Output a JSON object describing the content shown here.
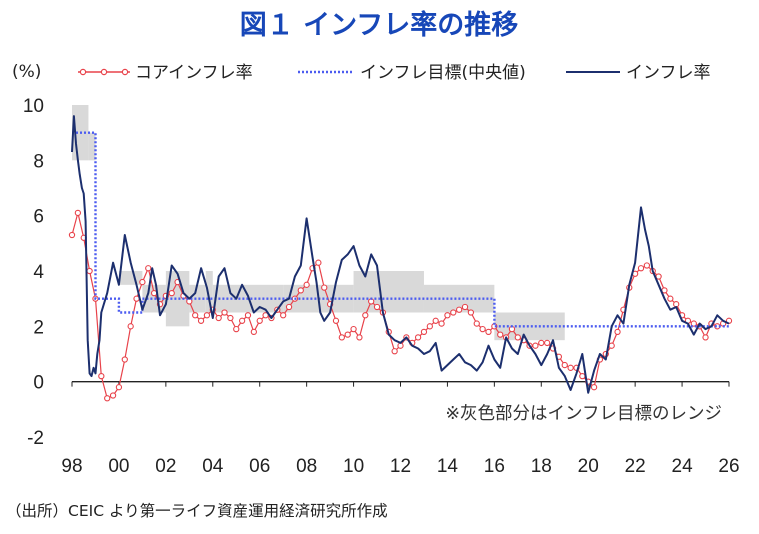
{
  "chart_data": {
    "type": "line",
    "title": "図１ インフレ率の推移",
    "ylabel": "(%)",
    "ylim": [
      -2,
      10
    ],
    "yticks": [
      "10",
      "8",
      "6",
      "4",
      "2",
      "0",
      "-2"
    ],
    "xticks": [
      "98",
      "00",
      "02",
      "04",
      "06",
      "08",
      "10",
      "12",
      "14",
      "16",
      "18",
      "20",
      "22",
      "24",
      "26"
    ],
    "xrange_years": [
      1998,
      2026
    ],
    "legend": [
      "コアインフレ率",
      "インフレ目標(中央値)",
      "インフレ率"
    ],
    "note": "※灰色部分はインフレ目標のレンジ",
    "source": "（出所）CEIC より第一ライフ資産運用経済研究所作成",
    "colors": {
      "title": "#1747b8",
      "core": "#e8424a",
      "target": "#4c5cf0",
      "headline": "#1c2f6e",
      "band": "#d9d9d9"
    },
    "target_band": [
      {
        "from": 1998.0,
        "to": 1998.7,
        "low": 8,
        "high": 10
      },
      {
        "from": 1998.7,
        "to": 1999.0,
        "low": 8,
        "high": 9
      },
      {
        "from": 2000.0,
        "to": 2001.0,
        "low": 3.5,
        "high": 4
      },
      {
        "from": 2001.0,
        "to": 2002.0,
        "low": 2.5,
        "high": 3.5
      },
      {
        "from": 2002.0,
        "to": 2003.0,
        "low": 2,
        "high": 4
      },
      {
        "from": 2003.0,
        "to": 2003.7,
        "low": 2.5,
        "high": 3.5
      },
      {
        "from": 2003.7,
        "to": 2004.0,
        "low": 2.5,
        "high": 4
      },
      {
        "from": 2004.0,
        "to": 2007.0,
        "low": 2.5,
        "high": 3.5
      },
      {
        "from": 2007.0,
        "to": 2010.0,
        "low": 2.5,
        "high": 3.5
      },
      {
        "from": 2010.0,
        "to": 2013.0,
        "low": 2.5,
        "high": 4
      },
      {
        "from": 2013.0,
        "to": 2016.0,
        "low": 2.5,
        "high": 3.5
      },
      {
        "from": 2016.0,
        "to": 2019.0,
        "low": 1.5,
        "high": 2.5
      }
    ],
    "series": [
      {
        "name": "コアインフレ率",
        "style": "line-circle",
        "x": [
          1998.0,
          1998.25,
          1998.5,
          1998.75,
          1999.0,
          1999.25,
          1999.5,
          1999.75,
          2000.0,
          2000.25,
          2000.5,
          2000.75,
          2001.0,
          2001.25,
          2001.5,
          2001.75,
          2002.0,
          2002.25,
          2002.5,
          2002.75,
          2003.0,
          2003.25,
          2003.5,
          2003.75,
          2004.0,
          2004.25,
          2004.5,
          2004.75,
          2005.0,
          2005.25,
          2005.5,
          2005.75,
          2006.0,
          2006.25,
          2006.5,
          2006.75,
          2007.0,
          2007.25,
          2007.5,
          2007.75,
          2008.0,
          2008.25,
          2008.5,
          2008.75,
          2009.0,
          2009.25,
          2009.5,
          2009.75,
          2010.0,
          2010.25,
          2010.5,
          2010.75,
          2011.0,
          2011.25,
          2011.5,
          2011.75,
          2012.0,
          2012.25,
          2012.5,
          2012.75,
          2013.0,
          2013.25,
          2013.5,
          2013.75,
          2014.0,
          2014.25,
          2014.5,
          2014.75,
          2015.0,
          2015.25,
          2015.5,
          2015.75,
          2016.0,
          2016.25,
          2016.5,
          2016.75,
          2017.0,
          2017.25,
          2017.5,
          2017.75,
          2018.0,
          2018.25,
          2018.5,
          2018.75,
          2019.0,
          2019.25,
          2019.5,
          2019.75,
          2020.0,
          2020.25,
          2020.5,
          2020.75,
          2021.0,
          2021.25,
          2021.5,
          2021.75,
          2022.0,
          2022.25,
          2022.5,
          2022.75,
          2023.0,
          2023.25,
          2023.5,
          2023.75,
          2024.0,
          2024.25,
          2024.5,
          2024.75,
          2025.0,
          2025.25,
          2025.5,
          2025.75,
          2026.0
        ],
        "values": [
          5.3,
          6.1,
          5.2,
          4.0,
          3.0,
          0.2,
          -0.6,
          -0.5,
          -0.2,
          0.8,
          2.0,
          3.0,
          3.6,
          4.1,
          3.2,
          2.8,
          3.1,
          3.2,
          3.6,
          3.1,
          2.9,
          2.4,
          2.2,
          2.4,
          2.6,
          2.3,
          2.5,
          2.3,
          1.9,
          2.2,
          2.4,
          1.8,
          2.2,
          2.4,
          2.3,
          2.6,
          2.4,
          2.7,
          3.0,
          3.3,
          3.5,
          4.1,
          4.3,
          3.4,
          2.8,
          2.2,
          1.6,
          1.7,
          1.9,
          1.6,
          2.4,
          2.9,
          2.7,
          2.5,
          1.8,
          1.1,
          1.3,
          1.6,
          1.4,
          1.6,
          1.8,
          2.0,
          2.2,
          2.1,
          2.4,
          2.5,
          2.6,
          2.7,
          2.5,
          2.1,
          1.9,
          1.8,
          2.0,
          1.7,
          1.6,
          1.9,
          1.6,
          1.5,
          1.3,
          1.3,
          1.4,
          1.4,
          1.2,
          0.9,
          0.6,
          0.5,
          0.5,
          0.2,
          0.0,
          -0.2,
          0.8,
          1.0,
          1.3,
          1.8,
          2.6,
          3.4,
          3.9,
          4.1,
          4.2,
          4.0,
          3.8,
          3.3,
          3.0,
          2.8,
          2.4,
          2.2,
          2.1,
          2.0,
          1.6,
          2.1,
          2.0,
          2.1,
          2.2
        ]
      },
      {
        "name": "インフレ目標(中央値)",
        "style": "dotted",
        "x": [
          1998.0,
          1999.0,
          1999.0,
          2000.0,
          2000.0,
          2001.0,
          2001.0,
          2016.0,
          2016.0,
          2026.0
        ],
        "values": [
          9,
          9,
          3,
          3,
          2.5,
          2.5,
          3,
          3,
          2,
          2
        ]
      },
      {
        "name": "インフレ率",
        "style": "line",
        "x": [
          1998.0,
          1998.08,
          1998.17,
          1998.25,
          1998.33,
          1998.42,
          1998.5,
          1998.58,
          1998.67,
          1998.75,
          1998.83,
          1998.92,
          1999.0,
          1999.08,
          1999.17,
          1999.25,
          1999.5,
          1999.75,
          2000.0,
          2000.25,
          2000.5,
          2000.75,
          2001.0,
          2001.25,
          2001.42,
          2001.58,
          2001.75,
          2002.0,
          2002.25,
          2002.5,
          2002.75,
          2003.0,
          2003.25,
          2003.5,
          2003.75,
          2004.0,
          2004.25,
          2004.5,
          2004.75,
          2005.0,
          2005.25,
          2005.5,
          2005.75,
          2006.0,
          2006.25,
          2006.5,
          2006.75,
          2007.0,
          2007.25,
          2007.5,
          2007.75,
          2008.0,
          2008.25,
          2008.42,
          2008.58,
          2008.75,
          2009.0,
          2009.25,
          2009.5,
          2009.75,
          2010.0,
          2010.25,
          2010.5,
          2010.75,
          2011.0,
          2011.25,
          2011.5,
          2011.75,
          2012.0,
          2012.25,
          2012.5,
          2012.75,
          2013.0,
          2013.25,
          2013.5,
          2013.75,
          2014.0,
          2014.25,
          2014.5,
          2014.75,
          2015.0,
          2015.25,
          2015.5,
          2015.75,
          2016.0,
          2016.25,
          2016.5,
          2016.75,
          2017.0,
          2017.25,
          2017.5,
          2017.75,
          2018.0,
          2018.25,
          2018.5,
          2018.75,
          2019.0,
          2019.25,
          2019.5,
          2019.75,
          2020.0,
          2020.25,
          2020.5,
          2020.75,
          2021.0,
          2021.25,
          2021.5,
          2021.75,
          2022.0,
          2022.25,
          2022.42,
          2022.58,
          2022.75,
          2023.0,
          2023.25,
          2023.5,
          2023.75,
          2024.0,
          2024.25,
          2024.5,
          2024.75,
          2025.0,
          2025.25,
          2025.5,
          2025.75,
          2026.0
        ],
        "values": [
          8.3,
          9.6,
          8.6,
          8.0,
          7.5,
          7.0,
          6.8,
          5.8,
          1.5,
          0.3,
          0.2,
          0.5,
          0.3,
          1.0,
          1.5,
          2.5,
          3.2,
          4.3,
          3.5,
          5.3,
          4.3,
          3.5,
          2.6,
          3.2,
          4.1,
          3.5,
          2.4,
          2.8,
          4.2,
          3.9,
          3.2,
          3.0,
          3.2,
          4.1,
          3.4,
          2.3,
          3.8,
          4.1,
          3.2,
          3.0,
          3.5,
          3.1,
          2.5,
          2.7,
          2.6,
          2.3,
          2.6,
          2.9,
          3.0,
          3.8,
          4.2,
          5.9,
          4.5,
          3.6,
          2.5,
          2.2,
          2.5,
          3.6,
          4.4,
          4.6,
          4.9,
          4.2,
          3.8,
          4.6,
          4.2,
          2.5,
          1.7,
          1.5,
          1.4,
          1.6,
          1.3,
          1.2,
          1.0,
          1.1,
          1.4,
          0.4,
          0.6,
          0.8,
          1.0,
          0.7,
          0.6,
          0.4,
          0.7,
          1.3,
          0.8,
          0.5,
          1.6,
          1.2,
          1.0,
          1.7,
          1.3,
          1.0,
          0.6,
          1.0,
          1.5,
          0.5,
          0.2,
          -0.3,
          0.3,
          1.0,
          -0.4,
          0.4,
          1.0,
          0.8,
          2.0,
          2.4,
          2.1,
          3.5,
          4.3,
          6.3,
          5.5,
          4.9,
          4.0,
          3.5,
          3.0,
          2.6,
          2.7,
          2.2,
          2.1,
          1.7,
          2.1,
          1.9,
          2.0,
          2.4,
          2.2,
          2.1
        ]
      }
    ]
  }
}
